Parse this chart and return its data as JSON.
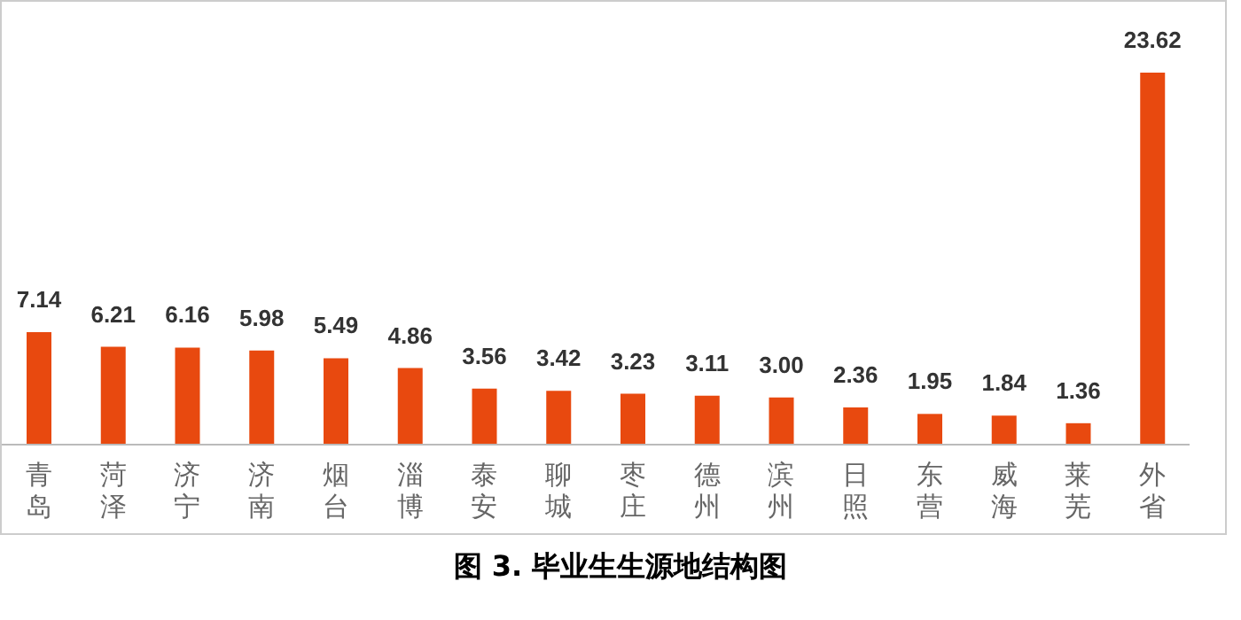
{
  "chart_data": {
    "type": "bar",
    "title": "图 3. 毕业生生源地结构图",
    "categories": [
      "青岛",
      "菏泽",
      "济宁",
      "济南",
      "烟台",
      "淄博",
      "泰安",
      "聊城",
      "枣庄",
      "德州",
      "滨州",
      "日照",
      "东营",
      "威海",
      "莱芜",
      "外省"
    ],
    "values": [
      7.14,
      6.21,
      6.16,
      5.98,
      5.49,
      4.86,
      3.56,
      3.42,
      3.23,
      3.11,
      3.0,
      2.36,
      1.95,
      1.84,
      1.36,
      23.62
    ],
    "value_labels": [
      "7.14",
      "6.21",
      "6.16",
      "5.98",
      "5.49",
      "4.86",
      "3.56",
      "3.42",
      "3.23",
      "3.11",
      "3.00",
      "2.36",
      "1.95",
      "1.84",
      "1.36",
      "23.62"
    ],
    "color": "#e8490f",
    "data_labels": true,
    "grid": false,
    "legend": false
  }
}
